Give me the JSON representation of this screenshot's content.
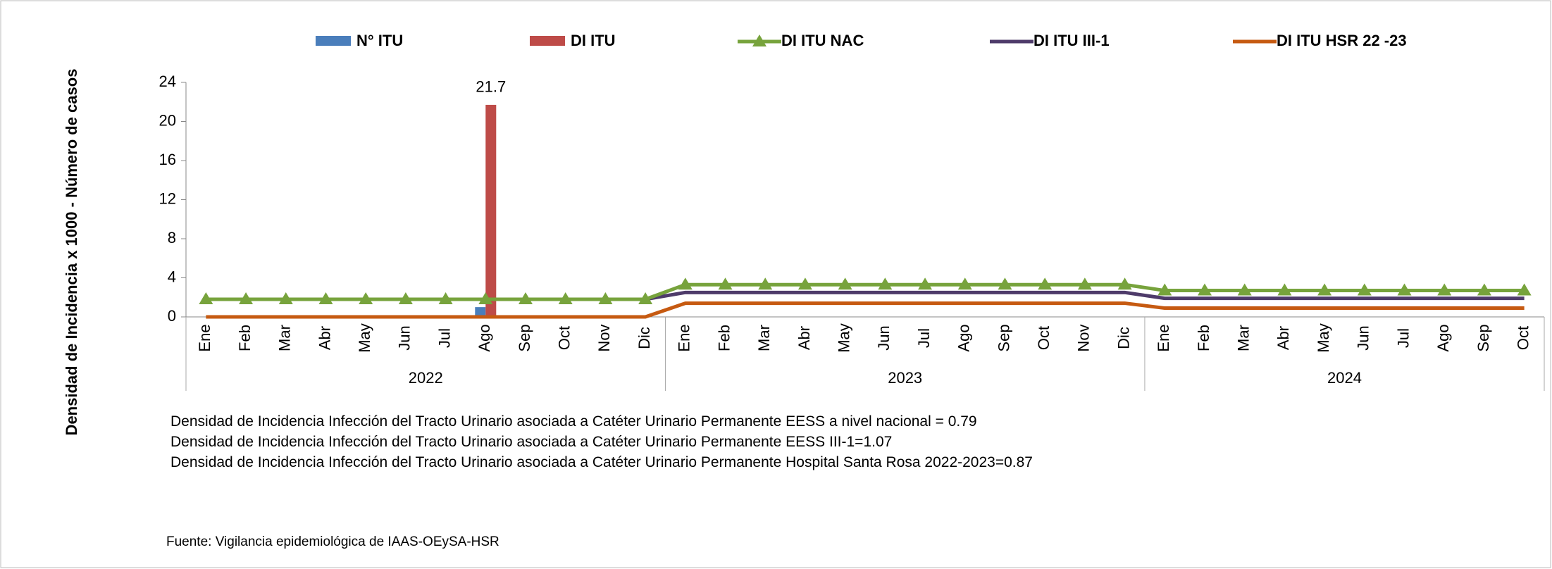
{
  "chart_data": {
    "type": "bar_line",
    "y_label": "Densidad de Incidencia x 1000 - Número de casos",
    "categories": [
      "Ene",
      "Feb",
      "Mar",
      "Abr",
      "May",
      "Jun",
      "Jul",
      "Ago",
      "Sep",
      "Oct",
      "Nov",
      "Dic",
      "Ene",
      "Feb",
      "Mar",
      "Abr",
      "May",
      "Jun",
      "Jul",
      "Ago",
      "Sep",
      "Oct",
      "Nov",
      "Dic",
      "Ene",
      "Feb",
      "Mar",
      "Abr",
      "May",
      "Jun",
      "Jul",
      "Ago",
      "Sep",
      "Oct"
    ],
    "years": [
      "2022",
      "2023",
      "2024"
    ],
    "ylim": [
      0,
      24
    ],
    "yticks": [
      0,
      4,
      8,
      12,
      16,
      20,
      24
    ],
    "series": [
      {
        "name": "N° ITU",
        "kind": "bar",
        "color": "#4a7ebb",
        "values": [
          0,
          0,
          0,
          0,
          0,
          0,
          0,
          1,
          0,
          0,
          0,
          0,
          0,
          0,
          0,
          0,
          0,
          0,
          0,
          0,
          0,
          0,
          0,
          0,
          0,
          0,
          0,
          0,
          0,
          0,
          0,
          0,
          0,
          0
        ]
      },
      {
        "name": "DI ITU",
        "kind": "bar",
        "color": "#be4b48",
        "values": [
          0,
          0,
          0,
          0,
          0,
          0,
          0,
          21.7,
          0,
          0,
          0,
          0,
          0,
          0,
          0,
          0,
          0,
          0,
          0,
          0,
          0,
          0,
          0,
          0,
          0,
          0,
          0,
          0,
          0,
          0,
          0,
          0,
          0,
          0
        ],
        "value_labels": [
          null,
          null,
          null,
          null,
          null,
          null,
          null,
          "21.7",
          null,
          null,
          null,
          null,
          null,
          null,
          null,
          null,
          null,
          null,
          null,
          null,
          null,
          null,
          null,
          null,
          null,
          null,
          null,
          null,
          null,
          null,
          null,
          null,
          null,
          null
        ]
      },
      {
        "name": "DI ITU NAC",
        "kind": "line",
        "marker": "triangle",
        "color": "#77a33c",
        "values": [
          1.8,
          1.8,
          1.8,
          1.8,
          1.8,
          1.8,
          1.8,
          1.8,
          1.8,
          1.8,
          1.8,
          1.8,
          3.3,
          3.3,
          3.3,
          3.3,
          3.3,
          3.3,
          3.3,
          3.3,
          3.3,
          3.3,
          3.3,
          3.3,
          2.7,
          2.7,
          2.7,
          2.7,
          2.7,
          2.7,
          2.7,
          2.7,
          2.7,
          2.7
        ]
      },
      {
        "name": "DI ITU III-1",
        "kind": "line",
        "color": "#4e3b6a",
        "values": [
          null,
          null,
          null,
          null,
          null,
          null,
          null,
          null,
          null,
          null,
          null,
          1.8,
          2.5,
          2.5,
          2.5,
          2.5,
          2.5,
          2.5,
          2.5,
          2.5,
          2.5,
          2.5,
          2.5,
          2.5,
          1.9,
          1.9,
          1.9,
          1.9,
          1.9,
          1.9,
          1.9,
          1.9,
          1.9,
          1.9
        ]
      },
      {
        "name": "DI ITU HSR 22 -23",
        "kind": "line",
        "color": "#c65a11",
        "values": [
          0,
          0,
          0,
          0,
          0,
          0,
          0,
          0,
          0,
          0,
          0,
          0,
          1.4,
          1.4,
          1.4,
          1.4,
          1.4,
          1.4,
          1.4,
          1.4,
          1.4,
          1.4,
          1.4,
          1.4,
          0.9,
          0.9,
          0.9,
          0.9,
          0.9,
          0.9,
          0.9,
          0.9,
          0.9,
          0.9
        ]
      }
    ],
    "notes": [
      "Densidad de Incidencia Infección del  Tracto Urinario  asociada a  Catéter Urinario  Permanente  EESS a nivel nacional = 0.79",
      "Densidad de Incidencia Infección del  Tracto Urinario  asociada a  Catéter Urinario  Permanente  EESS III-1=1.07",
      "Densidad de Incidencia Infección del  Tracto Urinario  asociada a  Catéter Urinario  Permanente  Hospital Santa Rosa  2022-2023=0.87"
    ],
    "source": "Fuente: Vigilancia epidemiológica de IAAS-OEySA-HSR"
  }
}
